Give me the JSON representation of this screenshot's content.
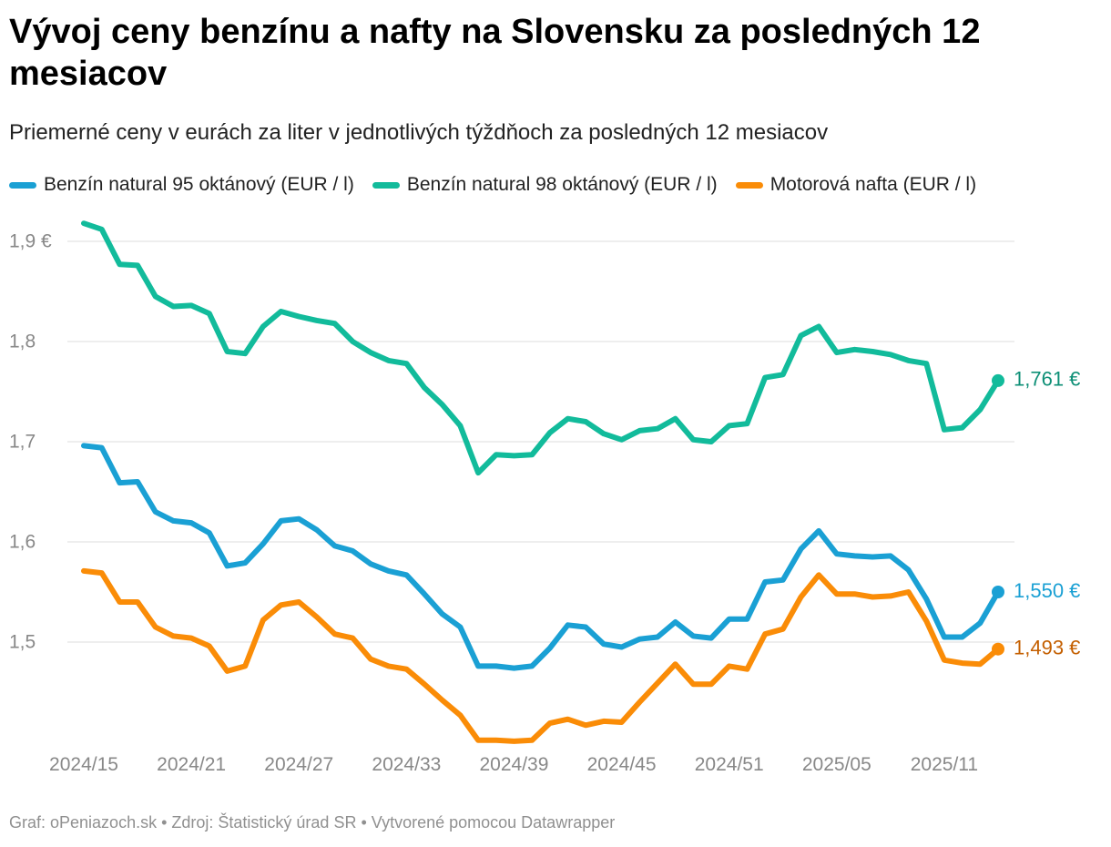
{
  "title": "Vývoj ceny benzínu a nafty na Slovensku za posledných 12 mesiacov",
  "subtitle": "Priemerné ceny v eurách za liter v jednotlivých týždňoch za posledných 12 mesiacov",
  "footer": "Graf: oPeniazoch.sk • Zdroj: Štatistický úrad SR • Vytvorené pomocou Datawrapper",
  "colors": {
    "natural95": "#1aa0d4",
    "natural98": "#12bb9b",
    "diesel": "#fa8c07",
    "natural98_label": "#0d8f76",
    "diesel_label": "#c45f00",
    "grid": "#dddddd",
    "tick_text": "#888888"
  },
  "chart_data": {
    "type": "line",
    "x": [
      "2024/15",
      "2024/16",
      "2024/17",
      "2024/18",
      "2024/19",
      "2024/20",
      "2024/21",
      "2024/22",
      "2024/23",
      "2024/24",
      "2024/25",
      "2024/26",
      "2024/27",
      "2024/28",
      "2024/29",
      "2024/30",
      "2024/31",
      "2024/32",
      "2024/33",
      "2024/34",
      "2024/35",
      "2024/36",
      "2024/37",
      "2024/38",
      "2024/39",
      "2024/40",
      "2024/41",
      "2024/42",
      "2024/43",
      "2024/44",
      "2024/45",
      "2024/46",
      "2024/47",
      "2024/48",
      "2024/49",
      "2024/50",
      "2024/51",
      "2024/52",
      "2025/01",
      "2025/02",
      "2025/03",
      "2025/04",
      "2025/05",
      "2025/06",
      "2025/07",
      "2025/08",
      "2025/09",
      "2025/10",
      "2025/11",
      "2025/12",
      "2025/13",
      "2025/14"
    ],
    "x_tick_labels": [
      "2024/15",
      "2024/21",
      "2024/27",
      "2024/33",
      "2024/39",
      "2024/45",
      "2024/51",
      "2025/05",
      "2025/11"
    ],
    "ylim": [
      1.4,
      1.92
    ],
    "y_ticks": [
      1.5,
      1.6,
      1.7,
      1.8,
      1.9
    ],
    "y_tick_labels": [
      "1,5",
      "1,6",
      "1,7",
      "1,8",
      "1,9 €"
    ],
    "grid": true,
    "legend_position": "top",
    "series": [
      {
        "name": "Benzín natural 95 oktánový (EUR / l)",
        "color": "#1aa0d4",
        "end_label": "1,550 €",
        "values": [
          1.696,
          1.694,
          1.659,
          1.66,
          1.63,
          1.621,
          1.619,
          1.609,
          1.576,
          1.579,
          1.598,
          1.621,
          1.623,
          1.612,
          1.596,
          1.591,
          1.578,
          1.571,
          1.567,
          1.548,
          1.528,
          1.515,
          1.476,
          1.476,
          1.474,
          1.476,
          1.494,
          1.517,
          1.515,
          1.498,
          1.495,
          1.503,
          1.505,
          1.52,
          1.506,
          1.504,
          1.523,
          1.523,
          1.56,
          1.562,
          1.593,
          1.611,
          1.588,
          1.586,
          1.585,
          1.586,
          1.572,
          1.543,
          1.505,
          1.505,
          1.519,
          1.55
        ]
      },
      {
        "name": "Benzín natural 98 oktánový (EUR / l)",
        "color": "#12bb9b",
        "end_label": "1,761 €",
        "values": [
          1.918,
          1.912,
          1.877,
          1.876,
          1.845,
          1.835,
          1.836,
          1.828,
          1.79,
          1.788,
          1.815,
          1.83,
          1.825,
          1.821,
          1.818,
          1.8,
          1.789,
          1.781,
          1.778,
          1.754,
          1.737,
          1.716,
          1.669,
          1.687,
          1.686,
          1.687,
          1.709,
          1.723,
          1.72,
          1.708,
          1.702,
          1.711,
          1.713,
          1.723,
          1.702,
          1.7,
          1.716,
          1.718,
          1.764,
          1.767,
          1.806,
          1.815,
          1.789,
          1.792,
          1.79,
          1.787,
          1.781,
          1.778,
          1.712,
          1.714,
          1.732,
          1.761
        ]
      },
      {
        "name": "Motorová nafta (EUR / l)",
        "color": "#fa8c07",
        "end_label": "1,493 €",
        "values": [
          1.571,
          1.569,
          1.54,
          1.54,
          1.515,
          1.506,
          1.504,
          1.496,
          1.471,
          1.476,
          1.522,
          1.537,
          1.54,
          1.525,
          1.508,
          1.504,
          1.483,
          1.476,
          1.473,
          1.458,
          1.442,
          1.427,
          1.402,
          1.402,
          1.401,
          1.402,
          1.419,
          1.423,
          1.417,
          1.421,
          1.42,
          1.44,
          1.459,
          1.478,
          1.458,
          1.458,
          1.476,
          1.473,
          1.508,
          1.513,
          1.545,
          1.567,
          1.548,
          1.548,
          1.545,
          1.546,
          1.55,
          1.521,
          1.482,
          1.479,
          1.478,
          1.493
        ]
      }
    ]
  }
}
